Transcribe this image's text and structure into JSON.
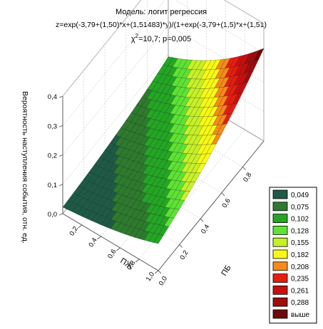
{
  "chart_data": {
    "type": "surface3d",
    "title": "Модель: логит регрессия",
    "subtitle": "z=exp(-3,79+(1,50)*x+(1,51483)*y)/(1+exp(-3,79+(1,5)*x+(1,51)",
    "stat_prefix": "χ",
    "stat_sup": "2",
    "stat_rest": "=10,7; p=0,005",
    "xlabel": "ПЖ",
    "ylabel": "ПБ",
    "zlabel": "Вероятность наступления события, отн. ед.",
    "x_ticks": [
      "0,2",
      "0,4",
      "0,6",
      "0,8",
      "1,0"
    ],
    "y_ticks": [
      "0,0",
      "0,2",
      "0,4",
      "0,6",
      "0,8"
    ],
    "z_ticks": [
      "0,0",
      "0,1",
      "0,2",
      "0,3",
      "0,4"
    ],
    "xlim": [
      0,
      1
    ],
    "ylim": [
      0,
      1
    ],
    "zlim": [
      0,
      0.4
    ],
    "model": {
      "b0": -3.79,
      "bx": 1.5,
      "by": 1.51483
    },
    "grid": true,
    "legend_position": "right",
    "legend": [
      {
        "label": "0,049",
        "color": "#1e5a46"
      },
      {
        "label": "0,075",
        "color": "#2e7a2e"
      },
      {
        "label": "0,102",
        "color": "#24a624"
      },
      {
        "label": "0,128",
        "color": "#5ee234"
      },
      {
        "label": "0,155",
        "color": "#c6f028"
      },
      {
        "label": "0,182",
        "color": "#f8f818"
      },
      {
        "label": "0,208",
        "color": "#f68a1a"
      },
      {
        "label": "0,235",
        "color": "#e41e10"
      },
      {
        "label": "0,261",
        "color": "#c80e0e"
      },
      {
        "label": "0,288",
        "color": "#9e0c0c"
      },
      {
        "label": "выше",
        "color": "#6e0808"
      }
    ]
  }
}
